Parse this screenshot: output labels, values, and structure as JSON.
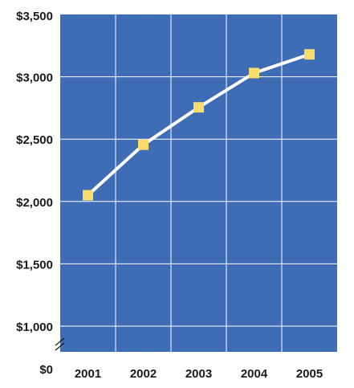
{
  "chart_data": {
    "type": "line",
    "title": "",
    "xlabel": "",
    "ylabel": "",
    "categories": [
      "2001",
      "2002",
      "2003",
      "2004",
      "2005"
    ],
    "series": [
      {
        "values": [
          2050,
          2455,
          2755,
          3030,
          3180
        ]
      }
    ],
    "ylim": [
      1000,
      3500
    ],
    "y_ticks": [
      {
        "value": 3500,
        "label": "$3,500"
      },
      {
        "value": 3000,
        "label": "$3,000"
      },
      {
        "value": 2500,
        "label": "$2,500"
      },
      {
        "value": 2000,
        "label": "$2,000"
      },
      {
        "value": 1500,
        "label": "$1,500"
      },
      {
        "value": 1000,
        "label": "$1,000"
      }
    ],
    "y_zero_label": "$0",
    "axis_break": true,
    "grid": true,
    "legend": "none",
    "colors": {
      "plot_background": "#3e6cb5",
      "grid": "#ffffff",
      "line": "#ffffff",
      "marker": "#f8dc6c",
      "text": "#1a1a1a"
    },
    "icons": {
      "axis_break": "axis-break-icon"
    }
  }
}
